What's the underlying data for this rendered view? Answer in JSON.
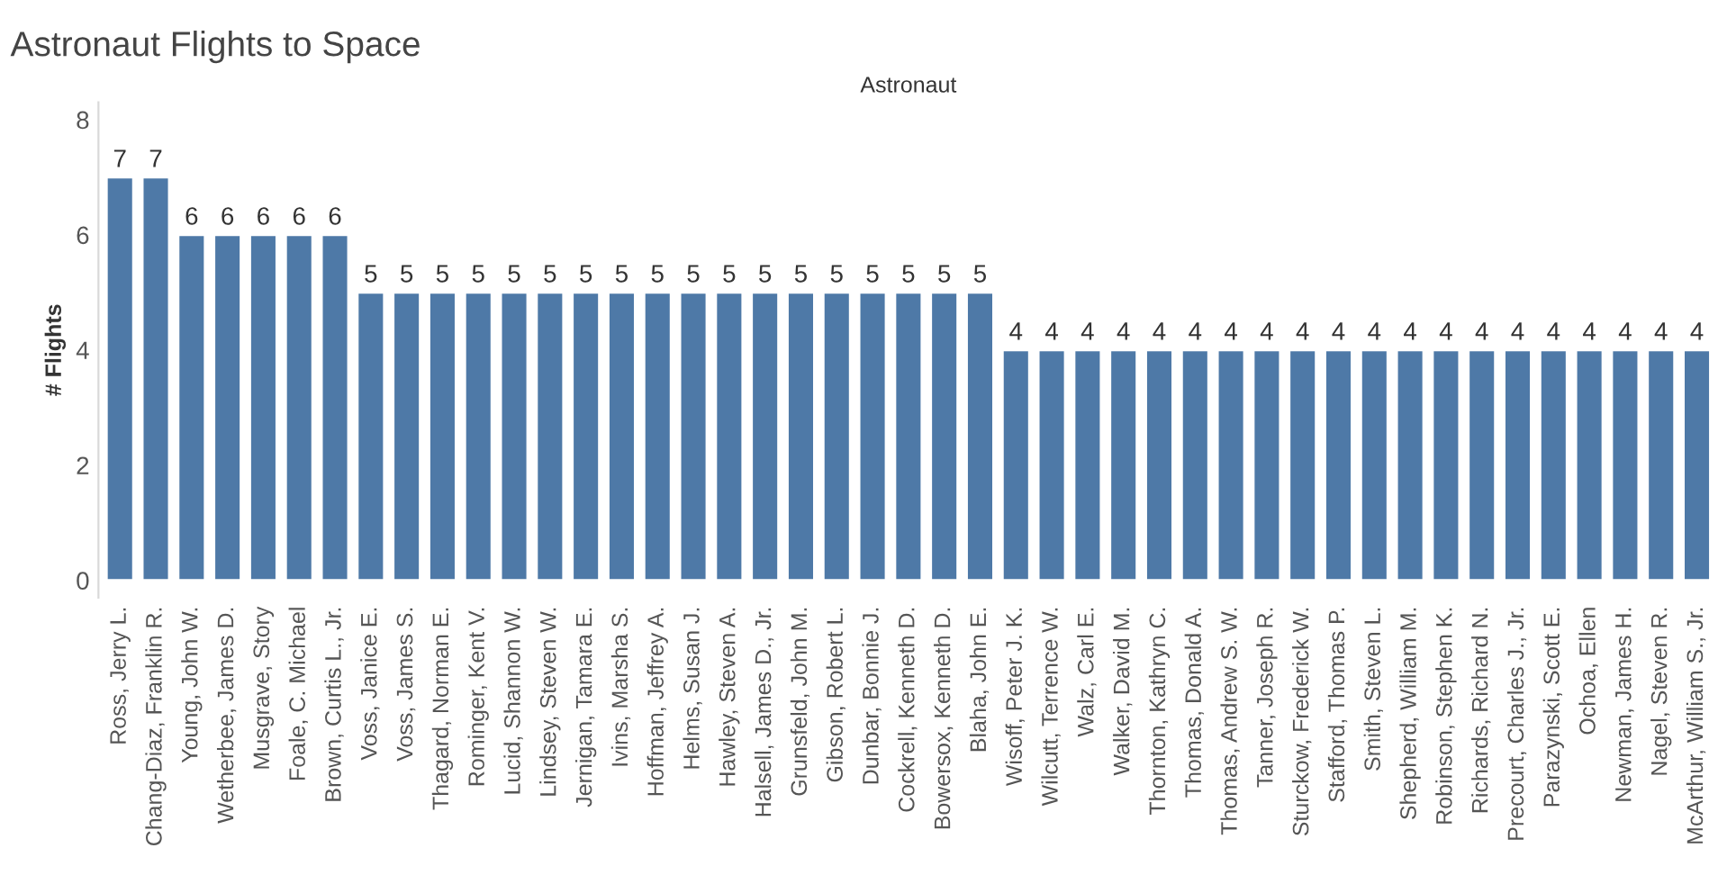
{
  "chart_data": {
    "type": "bar",
    "title": "Astronaut Flights to Space",
    "xlabel": "Astronaut",
    "ylabel": "# Flights",
    "categories": [
      "Ross, Jerry L.",
      "Chang-Diaz, Franklin R.",
      "Young, John W.",
      "Wetherbee, James D.",
      "Musgrave, Story",
      "Foale, C. Michael",
      "Brown, Curtis L., Jr.",
      "Voss, Janice E.",
      "Voss, James S.",
      "Thagard, Norman E.",
      "Rominger, Kent V.",
      "Lucid, Shannon W.",
      "Lindsey, Steven W.",
      "Jernigan, Tamara E.",
      "Ivins, Marsha S.",
      "Hoffman, Jeffrey A.",
      "Helms, Susan J.",
      "Hawley, Steven A.",
      "Halsell, James D., Jr.",
      "Grunsfeld, John M.",
      "Gibson, Robert L.",
      "Dunbar, Bonnie J.",
      "Cockrell, Kenneth D.",
      "Bowersox, Kenneth D.",
      "Blaha, John E.",
      "Wisoff, Peter J. K.",
      "Wilcutt, Terrence W.",
      "Walz, Carl E.",
      "Walker, David M.",
      "Thornton, Kathryn C.",
      "Thomas, Donald A.",
      "Thomas, Andrew S. W.",
      "Tanner, Joseph R.",
      "Sturckow, Frederick W.",
      "Stafford, Thomas P.",
      "Smith, Steven L.",
      "Shepherd, William M.",
      "Robinson, Stephen K.",
      "Richards, Richard N.",
      "Precourt, Charles J., Jr.",
      "Parazynski, Scott E.",
      "Ochoa, Ellen",
      "Newman, James H.",
      "Nagel, Steven R.",
      "McArthur, William S., Jr."
    ],
    "values": [
      7,
      7,
      6,
      6,
      6,
      6,
      6,
      5,
      5,
      5,
      5,
      5,
      5,
      5,
      5,
      5,
      5,
      5,
      5,
      5,
      5,
      5,
      5,
      5,
      5,
      4,
      4,
      4,
      4,
      4,
      4,
      4,
      4,
      4,
      4,
      4,
      4,
      4,
      4,
      4,
      4,
      4,
      4,
      4,
      4
    ],
    "color": "#4e79a7",
    "ylim": [
      -0.3,
      8.3
    ],
    "yticks": [
      0,
      2,
      4,
      6,
      8
    ],
    "data_labels": true,
    "grid": false,
    "legend": false
  }
}
